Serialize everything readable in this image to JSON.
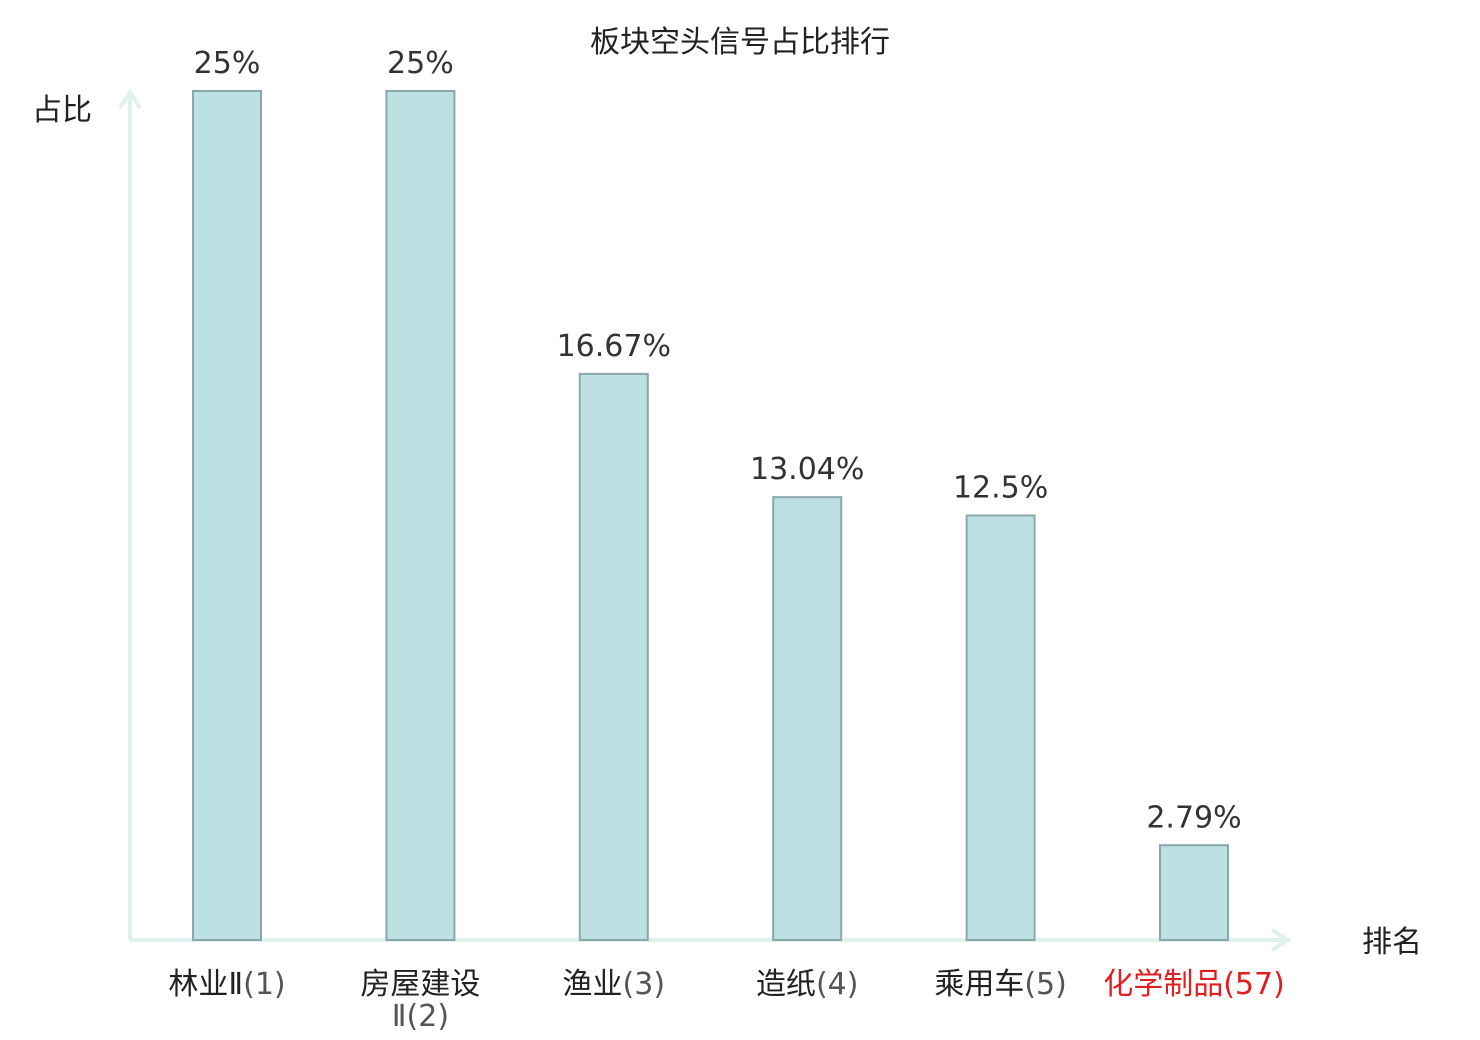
{
  "chart_data": {
    "type": "bar",
    "title": "板块空头信号占比排行",
    "xlabel": "排名",
    "ylabel": "占比",
    "ylim": [
      0,
      25
    ],
    "grid": false,
    "categories": [
      {
        "name": "林业Ⅱ",
        "rank": "(1)"
      },
      {
        "name": "房屋建设Ⅱ",
        "rank": "(2)"
      },
      {
        "name": "渔业",
        "rank": "(3)"
      },
      {
        "name": "造纸",
        "rank": "(4)"
      },
      {
        "name": "乘用车",
        "rank": "(5)"
      },
      {
        "name": "化学制品",
        "rank": "(57)"
      }
    ],
    "values": [
      25,
      25,
      16.67,
      13.04,
      12.5,
      2.79
    ],
    "value_labels": [
      "25%",
      "25%",
      "16.67%",
      "13.04%",
      "12.5%",
      "2.79%"
    ],
    "highlight_index": 5,
    "colors": {
      "bar_fill": "#bde0e3",
      "bar_stroke": "#8aa8ab",
      "axis": "#dff2ef",
      "highlight": "#e02020"
    }
  }
}
